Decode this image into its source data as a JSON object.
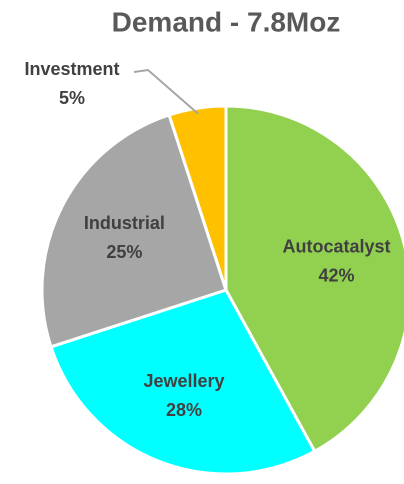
{
  "chart_data": {
    "type": "pie",
    "title": "Demand - 7.8Moz",
    "categories": [
      "Autocatalyst",
      "Jewellery",
      "Industrial",
      "Investment"
    ],
    "values": [
      42,
      28,
      25,
      5
    ],
    "value_labels": [
      "42%",
      "28%",
      "25%",
      "5%"
    ],
    "colors": [
      "#92d050",
      "#00ffff",
      "#a6a6a6",
      "#ffc000"
    ]
  }
}
